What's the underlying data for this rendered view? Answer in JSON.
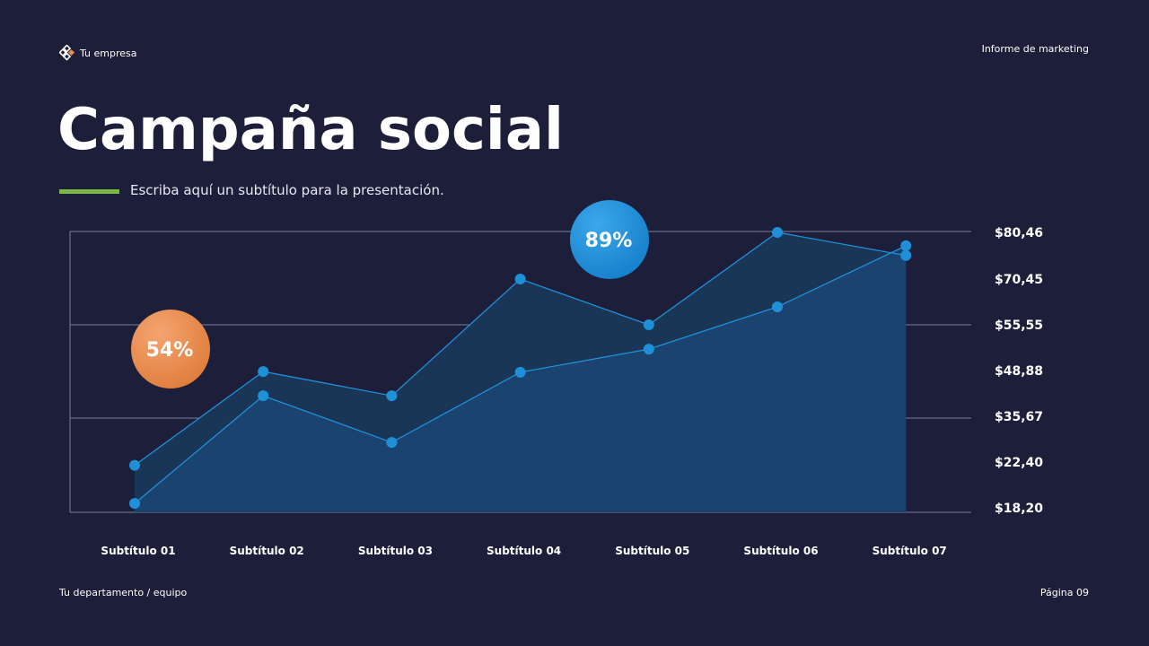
{
  "header": {
    "company": "Tu empresa",
    "report": "Informe de marketing"
  },
  "title": "Campaña social",
  "subtitle": "Escriba aquí un subtítulo para la presentación.",
  "colors": {
    "background": "#1d1f3a",
    "accent_bar": "#7ab648",
    "line": "#1f8fd8",
    "bubble_orange": "#ec8a4a",
    "bubble_blue": "#1a8cd8"
  },
  "chart_data": {
    "type": "area",
    "categories": [
      "Subtítulo 01",
      "Subtítulo 02",
      "Subtítulo 03",
      "Subtítulo 04",
      "Subtítulo 05",
      "Subtítulo 06",
      "Subtítulo 07"
    ],
    "y_ticks": [
      "$18,20",
      "$22,40",
      "$35,67",
      "$48,88",
      "$55,55",
      "$70,45",
      "$80,46"
    ],
    "y_tick_values": [
      18.2,
      22.4,
      35.67,
      48.88,
      55.55,
      70.45,
      80.46
    ],
    "series": [
      {
        "values": [
          22.1,
          48.6,
          41.6,
          70.45,
          55.55,
          80.46,
          75.5
        ]
      },
      {
        "values": [
          18.6,
          41.6,
          28.1,
          48.4,
          52.0,
          61.4,
          77.6
        ]
      }
    ],
    "annotations": [
      {
        "label": "54%",
        "color": "orange",
        "category": "Subtítulo 01"
      },
      {
        "label": "89%",
        "color": "blue",
        "category": "Subtítulo 05"
      }
    ],
    "grid": true
  },
  "footer": {
    "left": "Tu departamento / equipo",
    "right": "Página 09"
  }
}
